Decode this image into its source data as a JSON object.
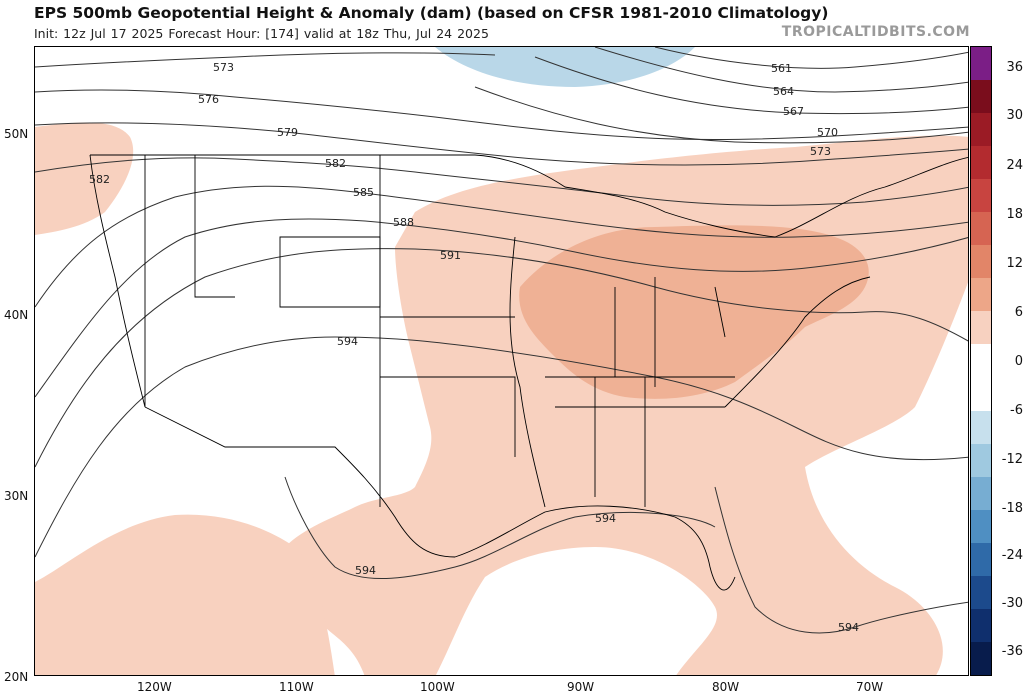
{
  "header": {
    "title": "EPS 500mb Geopotential Height & Anomaly (dam) (based on CFSR 1981-2010 Climatology)",
    "subtitle": "Init: 12z Jul 17 2025   Forecast Hour: [174]   valid at 18z Thu, Jul 24 2025",
    "brand": "TROPICALTIDBITS.COM"
  },
  "axes": {
    "lat_labels": [
      "50N",
      "40N",
      "30N",
      "20N"
    ],
    "lon_labels": [
      "120W",
      "110W",
      "100W",
      "90W",
      "80W",
      "70W"
    ]
  },
  "colorbar": {
    "ticks": [
      "36",
      "30",
      "24",
      "18",
      "12",
      "6",
      "0",
      "-6",
      "-12",
      "-18",
      "-24",
      "-30",
      "-36"
    ],
    "colors": [
      "#7b1e86",
      "#7a0d1c",
      "#9b1b25",
      "#b32b2f",
      "#c84440",
      "#d66452",
      "#e28568",
      "#eda688",
      "#f7d1c0",
      "#ffffff",
      "#ffffff",
      "#c7e0ed",
      "#9fc9e0",
      "#77add2",
      "#4f8fc2",
      "#2f6aa8",
      "#1c4a8c",
      "#0f2f6d",
      "#081c4c"
    ]
  },
  "contours": {
    "labels": [
      "573",
      "576",
      "579",
      "582",
      "585",
      "588",
      "591",
      "594",
      "561",
      "564",
      "567",
      "570",
      "573",
      "582",
      "594",
      "594",
      "594"
    ]
  },
  "colors": {
    "anomaly_pos_light": "#f8d1bf",
    "anomaly_pos_med": "#efb195",
    "anomaly_neg_light": "#b9d7e8"
  }
}
